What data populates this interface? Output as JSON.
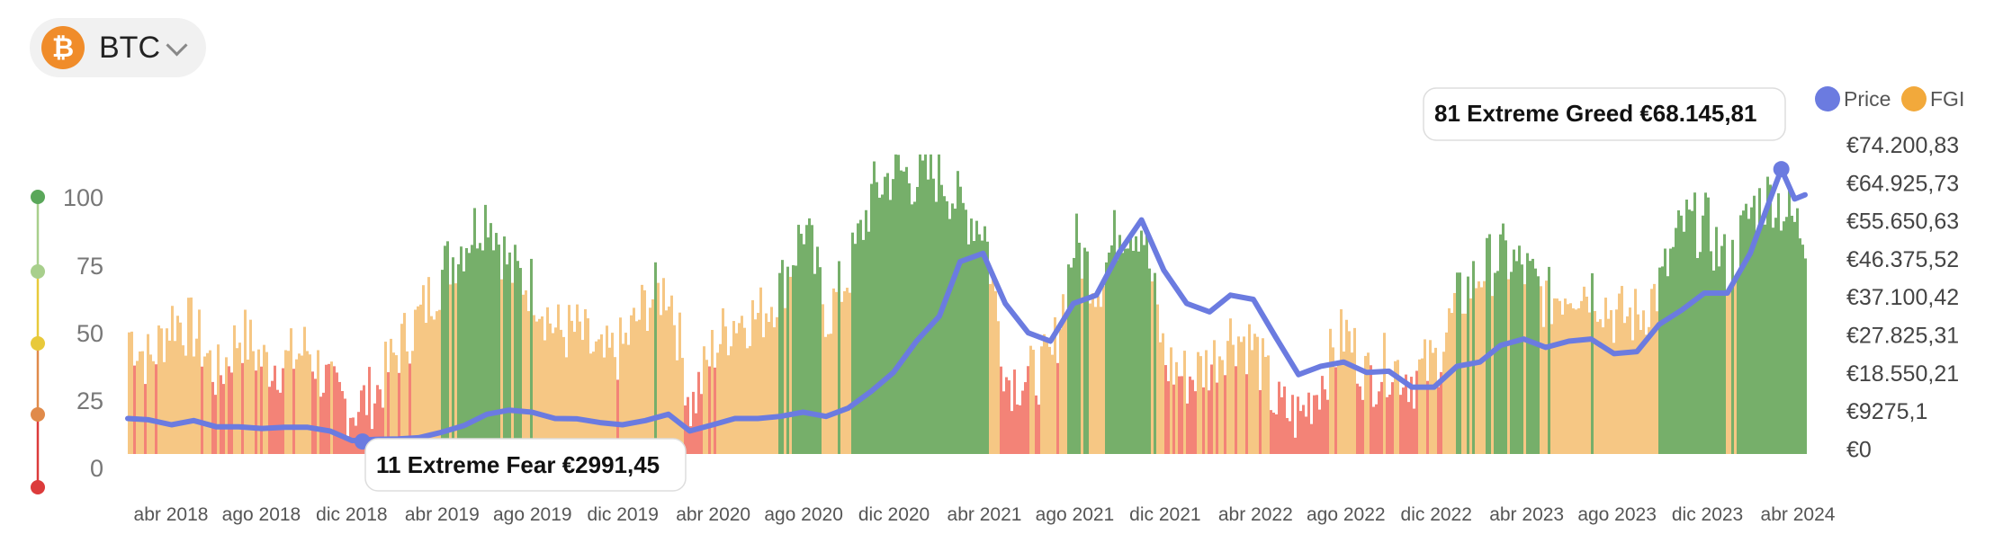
{
  "asset": {
    "symbol": "BTC",
    "icon": "bitcoin-icon"
  },
  "legend": [
    {
      "label": "Price",
      "color": "#6b7be0"
    },
    {
      "label": "FGI",
      "color": "#f2a93b"
    }
  ],
  "callouts": {
    "high": "81 Extreme Greed €68.145,81",
    "low": "11 Extreme Fear €2991,45"
  },
  "colors": {
    "extreme_fear": "#dc3b3b",
    "fear": "#e08a4a",
    "neutral": "#e8c93a",
    "greed": "#a8cf8c",
    "extreme_greed": "#5aa75a",
    "price": "#6b7be0",
    "band_fear": "#f2786b",
    "band_neutral": "#f5c27a",
    "band_greed": "#6aa85d"
  },
  "chart_data": {
    "type": "bar",
    "title": "",
    "x_ticks": [
      "abr 2018",
      "ago 2018",
      "dic 2018",
      "abr 2019",
      "ago 2019",
      "dic 2019",
      "abr 2020",
      "ago 2020",
      "dic 2020",
      "abr 2021",
      "ago 2021",
      "dic 2021",
      "abr 2022",
      "ago 2022",
      "dic 2022",
      "abr 2023",
      "ago 2023",
      "dic 2023",
      "abr 2024"
    ],
    "x_range": [
      "2018-02-01",
      "2024-04-15"
    ],
    "y_left": {
      "label": "",
      "ticks": [
        "100",
        "75",
        "50",
        "25",
        "0"
      ],
      "range": [
        0,
        100
      ]
    },
    "y_right": {
      "label": "",
      "ticks": [
        "€74.200,83",
        "€64.925,73",
        "€55.650,63",
        "€46.375,52",
        "€37.100,42",
        "€27.825,31",
        "€18.550,21",
        "€9275,1",
        "€0"
      ],
      "range": [
        0,
        74200.83
      ]
    },
    "series": [
      {
        "name": "Price",
        "kind": "line",
        "points": [
          [
            "2018-02-01",
            8500
          ],
          [
            "2018-03-01",
            8200
          ],
          [
            "2018-04-01",
            7000
          ],
          [
            "2018-05-01",
            8000
          ],
          [
            "2018-06-01",
            6500
          ],
          [
            "2018-07-01",
            6500
          ],
          [
            "2018-08-01",
            6100
          ],
          [
            "2018-09-01",
            6400
          ],
          [
            "2018-10-01",
            6400
          ],
          [
            "2018-11-01",
            5500
          ],
          [
            "2018-12-01",
            3200
          ],
          [
            "2019-01-01",
            3500
          ],
          [
            "2019-02-01",
            3600
          ],
          [
            "2019-03-01",
            3900
          ],
          [
            "2019-04-01",
            5200
          ],
          [
            "2019-05-01",
            6800
          ],
          [
            "2019-06-01",
            9500
          ],
          [
            "2019-07-01",
            10500
          ],
          [
            "2019-08-01",
            10000
          ],
          [
            "2019-09-01",
            8500
          ],
          [
            "2019-10-01",
            8400
          ],
          [
            "2019-11-01",
            7500
          ],
          [
            "2019-12-01",
            7000
          ],
          [
            "2020-01-01",
            8000
          ],
          [
            "2020-02-01",
            9500
          ],
          [
            "2020-03-01",
            5500
          ],
          [
            "2020-04-01",
            7000
          ],
          [
            "2020-05-01",
            8500
          ],
          [
            "2020-06-01",
            8500
          ],
          [
            "2020-07-01",
            9000
          ],
          [
            "2020-08-01",
            10000
          ],
          [
            "2020-09-01",
            9000
          ],
          [
            "2020-10-01",
            11000
          ],
          [
            "2020-11-01",
            15000
          ],
          [
            "2020-12-01",
            19500
          ],
          [
            "2021-01-01",
            27000
          ],
          [
            "2021-02-01",
            33000
          ],
          [
            "2021-03-01",
            46000
          ],
          [
            "2021-04-01",
            48000
          ],
          [
            "2021-05-01",
            36000
          ],
          [
            "2021-06-01",
            29000
          ],
          [
            "2021-07-01",
            27000
          ],
          [
            "2021-08-01",
            36000
          ],
          [
            "2021-09-01",
            38000
          ],
          [
            "2021-10-01",
            48000
          ],
          [
            "2021-11-01",
            56000
          ],
          [
            "2021-12-01",
            44000
          ],
          [
            "2022-01-01",
            36000
          ],
          [
            "2022-02-01",
            34000
          ],
          [
            "2022-03-01",
            38000
          ],
          [
            "2022-04-01",
            37000
          ],
          [
            "2022-05-01",
            28000
          ],
          [
            "2022-06-01",
            19000
          ],
          [
            "2022-07-01",
            21000
          ],
          [
            "2022-08-01",
            22000
          ],
          [
            "2022-09-01",
            19500
          ],
          [
            "2022-10-01",
            19800
          ],
          [
            "2022-11-01",
            16000
          ],
          [
            "2022-12-01",
            16000
          ],
          [
            "2023-01-01",
            21000
          ],
          [
            "2023-02-01",
            22000
          ],
          [
            "2023-03-01",
            26000
          ],
          [
            "2023-04-01",
            27500
          ],
          [
            "2023-05-01",
            25500
          ],
          [
            "2023-06-01",
            27000
          ],
          [
            "2023-07-01",
            27500
          ],
          [
            "2023-08-01",
            24000
          ],
          [
            "2023-09-01",
            24500
          ],
          [
            "2023-10-01",
            31000
          ],
          [
            "2023-11-01",
            34500
          ],
          [
            "2023-12-01",
            38500
          ],
          [
            "2024-01-01",
            38500
          ],
          [
            "2024-02-01",
            48000
          ],
          [
            "2024-03-01",
            62000
          ],
          [
            "2024-03-14",
            68145.81
          ],
          [
            "2024-04-01",
            61000
          ],
          [
            "2024-04-15",
            62000
          ]
        ]
      },
      {
        "name": "FGI",
        "kind": "bars",
        "monthly_levels": [
          [
            "2018-02-01",
            40
          ],
          [
            "2018-03-01",
            30
          ],
          [
            "2018-04-01",
            45
          ],
          [
            "2018-05-01",
            40
          ],
          [
            "2018-06-01",
            25
          ],
          [
            "2018-07-01",
            40
          ],
          [
            "2018-08-01",
            30
          ],
          [
            "2018-09-01",
            30
          ],
          [
            "2018-10-01",
            35
          ],
          [
            "2018-11-01",
            20
          ],
          [
            "2018-12-01",
            15
          ],
          [
            "2019-01-01",
            20
          ],
          [
            "2019-02-01",
            35
          ],
          [
            "2019-03-01",
            45
          ],
          [
            "2019-04-01",
            60
          ],
          [
            "2019-05-01",
            70
          ],
          [
            "2019-06-01",
            80
          ],
          [
            "2019-07-01",
            60
          ],
          [
            "2019-08-01",
            55
          ],
          [
            "2019-09-01",
            40
          ],
          [
            "2019-10-01",
            40
          ],
          [
            "2019-11-01",
            30
          ],
          [
            "2019-12-01",
            35
          ],
          [
            "2020-01-01",
            50
          ],
          [
            "2020-02-01",
            55
          ],
          [
            "2020-03-01",
            15
          ],
          [
            "2020-04-01",
            35
          ],
          [
            "2020-05-01",
            45
          ],
          [
            "2020-06-01",
            45
          ],
          [
            "2020-07-01",
            55
          ],
          [
            "2020-08-01",
            75
          ],
          [
            "2020-09-01",
            45
          ],
          [
            "2020-10-01",
            60
          ],
          [
            "2020-11-01",
            85
          ],
          [
            "2020-12-01",
            93
          ],
          [
            "2021-01-01",
            90
          ],
          [
            "2021-02-01",
            92
          ],
          [
            "2021-03-01",
            80
          ],
          [
            "2021-04-01",
            75
          ],
          [
            "2021-05-01",
            25
          ],
          [
            "2021-06-01",
            25
          ],
          [
            "2021-07-01",
            30
          ],
          [
            "2021-08-01",
            70
          ],
          [
            "2021-09-01",
            55
          ],
          [
            "2021-10-01",
            75
          ],
          [
            "2021-11-01",
            75
          ],
          [
            "2021-12-01",
            30
          ],
          [
            "2022-01-01",
            25
          ],
          [
            "2022-02-01",
            30
          ],
          [
            "2022-03-01",
            40
          ],
          [
            "2022-04-01",
            35
          ],
          [
            "2022-05-01",
            15
          ],
          [
            "2022-06-01",
            12
          ],
          [
            "2022-07-01",
            25
          ],
          [
            "2022-08-01",
            40
          ],
          [
            "2022-09-01",
            25
          ],
          [
            "2022-10-01",
            30
          ],
          [
            "2022-11-01",
            25
          ],
          [
            "2022-12-01",
            30
          ],
          [
            "2023-01-01",
            50
          ],
          [
            "2023-02-01",
            60
          ],
          [
            "2023-03-01",
            65
          ],
          [
            "2023-04-01",
            60
          ],
          [
            "2023-05-01",
            50
          ],
          [
            "2023-06-01",
            55
          ],
          [
            "2023-07-01",
            55
          ],
          [
            "2023-08-01",
            45
          ],
          [
            "2023-09-01",
            45
          ],
          [
            "2023-10-01",
            55
          ],
          [
            "2023-11-01",
            75
          ],
          [
            "2023-12-01",
            75
          ],
          [
            "2024-01-01",
            60
          ],
          [
            "2024-02-01",
            80
          ],
          [
            "2024-03-01",
            85
          ],
          [
            "2024-04-01",
            75
          ],
          [
            "2024-04-15",
            72
          ]
        ]
      }
    ],
    "highlights": [
      {
        "date": "2024-03-14",
        "fgi": 81,
        "price": 68145.81,
        "label": "81 Extreme Greed €68.145,81"
      },
      {
        "date": "2018-12-15",
        "fgi": 11,
        "price": 2991.45,
        "label": "11 Extreme Fear €2991,45"
      }
    ],
    "legend_position": "top-right",
    "grid": false
  }
}
